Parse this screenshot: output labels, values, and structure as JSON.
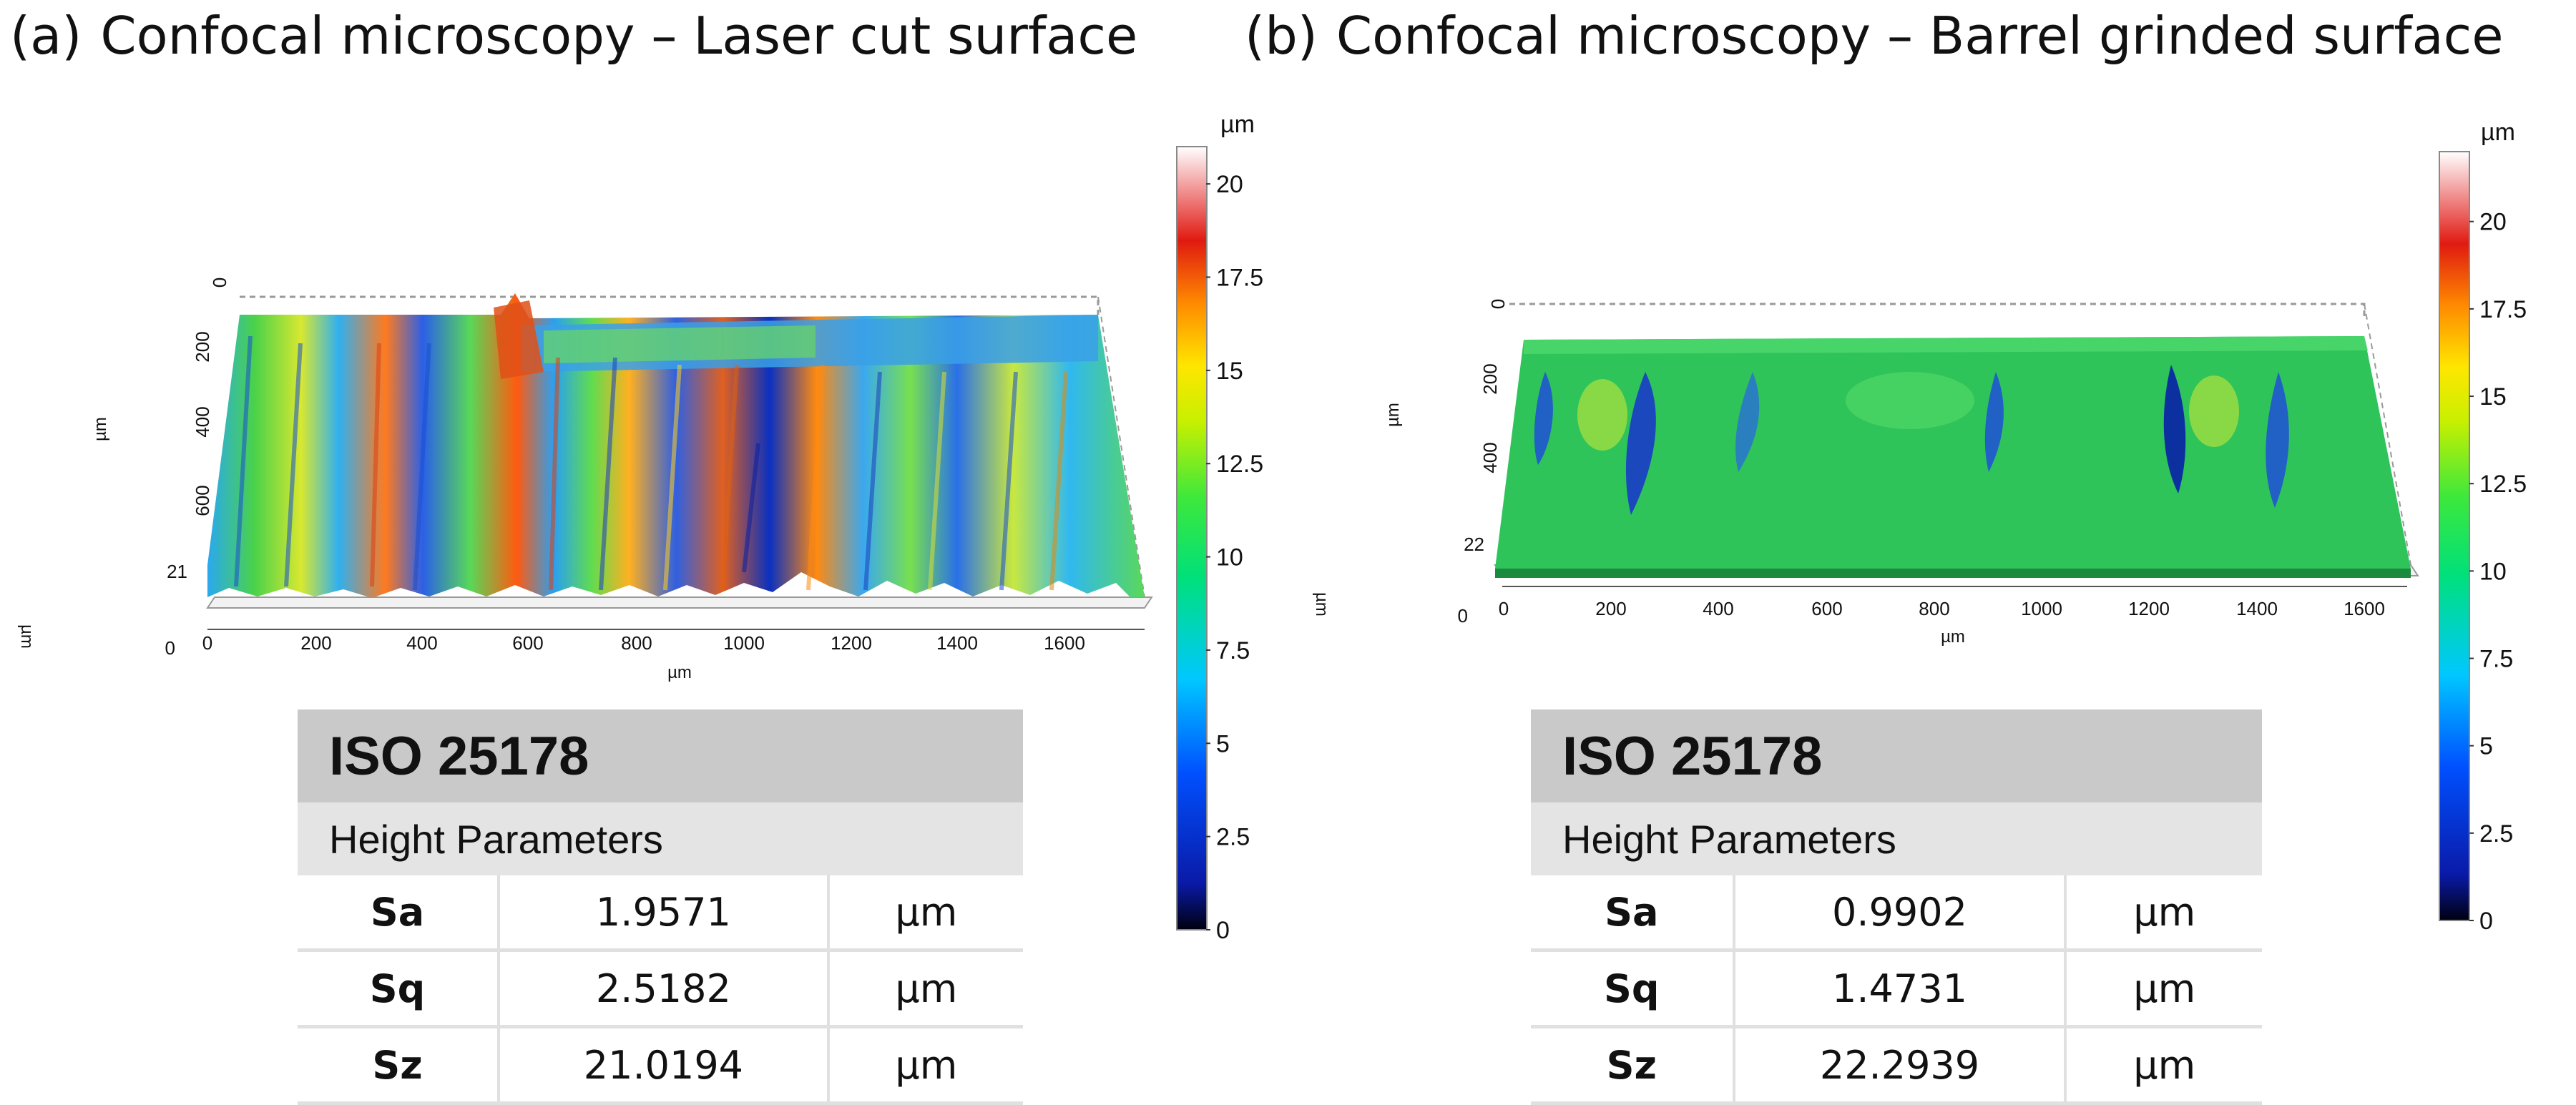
{
  "panels": [
    {
      "label": "(a)",
      "title": "Confocal microscopy – Laser cut surface",
      "plot": {
        "x_ticks": [
          "0",
          "200",
          "400",
          "600",
          "800",
          "1000",
          "1200",
          "1400",
          "1600"
        ],
        "y_ticks": [
          "0",
          "200",
          "400",
          "600"
        ],
        "z_ticks": [
          "0",
          "21"
        ],
        "x_unit": "µm",
        "y_unit": "µm",
        "z_unit": "µm",
        "colorbar_unit": "µm",
        "colorbar_ticks": [
          "20",
          "17.5",
          "15",
          "12.5",
          "10",
          "7.5",
          "5",
          "2.5",
          "0"
        ],
        "colorbar_range": [
          0,
          21
        ]
      },
      "table": {
        "standard": "ISO 25178",
        "section": "Height Parameters",
        "rows": [
          {
            "param": "Sa",
            "value": "1.9571",
            "unit": "µm"
          },
          {
            "param": "Sq",
            "value": "2.5182",
            "unit": "µm"
          },
          {
            "param": "Sz",
            "value": "21.0194",
            "unit": "µm"
          }
        ]
      }
    },
    {
      "label": "(b)",
      "title": "Confocal microscopy – Barrel grinded surface",
      "plot": {
        "x_ticks": [
          "0",
          "200",
          "400",
          "600",
          "800",
          "1000",
          "1200",
          "1400",
          "1600"
        ],
        "y_ticks": [
          "0",
          "200",
          "400"
        ],
        "z_ticks": [
          "0",
          "22"
        ],
        "x_unit": "µm",
        "y_unit": "µm",
        "z_unit": "µm",
        "colorbar_unit": "µm",
        "colorbar_ticks": [
          "20",
          "17.5",
          "15",
          "12.5",
          "10",
          "7.5",
          "5",
          "2.5",
          "0"
        ],
        "colorbar_range": [
          0,
          22
        ]
      },
      "table": {
        "standard": "ISO 25178",
        "section": "Height Parameters",
        "rows": [
          {
            "param": "Sa",
            "value": "0.9902",
            "unit": "µm"
          },
          {
            "param": "Sq",
            "value": "1.4731",
            "unit": "µm"
          },
          {
            "param": "Sz",
            "value": "22.2939",
            "unit": "µm"
          }
        ]
      }
    }
  ]
}
